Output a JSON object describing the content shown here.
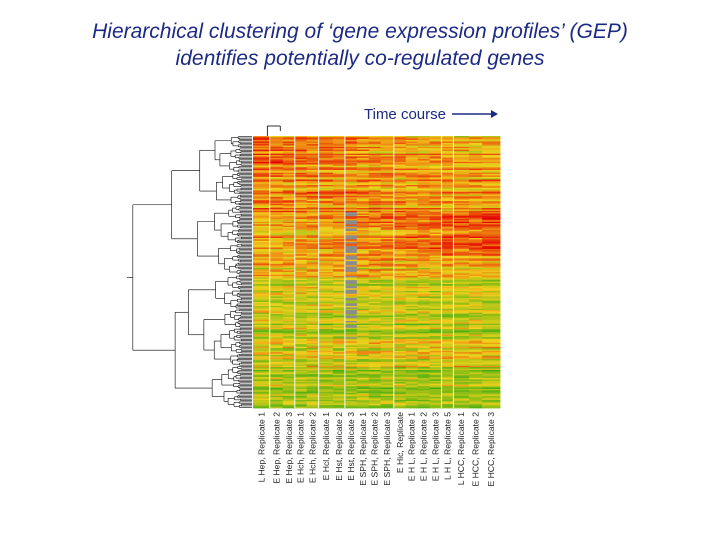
{
  "slide": {
    "title_line1": "Hierarchical clustering of ‘gene expression profiles’ (GEP)",
    "title_line2": "identifies potentially co-regulated genes",
    "arrow_label": "Time course"
  },
  "colors": {
    "title": "#1c2a86",
    "arrow": "#1c2a86",
    "dendrogram": "#000000",
    "high": "#e60000",
    "mid": "#f2d21c",
    "low": "#2faa10",
    "missing": "#8c8c8c"
  },
  "chart_data": {
    "type": "heatmap",
    "title": "",
    "xlabel": "",
    "ylabel": "",
    "columns": [
      "L Hep, Replicate 1",
      "E Hep, Replicate 2",
      "E Hep, Replicate 3",
      "E Hch, Replicate 1",
      "E Hch, Replicate 2",
      "E Hcl, Replicate 1",
      "E Hst, Replicate 2",
      "E Hst, Replicate 3",
      "E SPH, Replicate 1",
      "E SPH, Replicate 2",
      "E SPH, Replicate 3",
      "E Hic, Replicate",
      "E H L, Replicate 1",
      "E H L, Replicate 2",
      "E H L, Replicate 3",
      "L H L, Replicate 5",
      "L HCC, Replicate 1",
      "E HCC, Replicate 2",
      "E HCC, Replicate 3"
    ],
    "column_widths": [
      1.4,
      1.1,
      1,
      1,
      1,
      1.2,
      1,
      1,
      1,
      1,
      1.1,
      1,
      1,
      1,
      1,
      1,
      1.3,
      1.1,
      1.5
    ],
    "column_groups": [
      1,
      3,
      5,
      7,
      11,
      15,
      16
    ],
    "missing_column": 7,
    "legend": "",
    "row_count": 200,
    "gene_clusters": [
      {
        "fraction": 0.12,
        "early": 0.72,
        "late": 0.52
      },
      {
        "fraction": 0.16,
        "early": 0.68,
        "late": 0.62
      },
      {
        "fraction": 0.16,
        "early": 0.55,
        "late": 0.8
      },
      {
        "fraction": 0.09,
        "early": 0.52,
        "late": 0.55
      },
      {
        "fraction": 0.22,
        "early": 0.38,
        "late": 0.34
      },
      {
        "fraction": 0.1,
        "early": 0.42,
        "late": 0.46
      },
      {
        "fraction": 0.15,
        "early": 0.33,
        "late": 0.3
      }
    ]
  }
}
